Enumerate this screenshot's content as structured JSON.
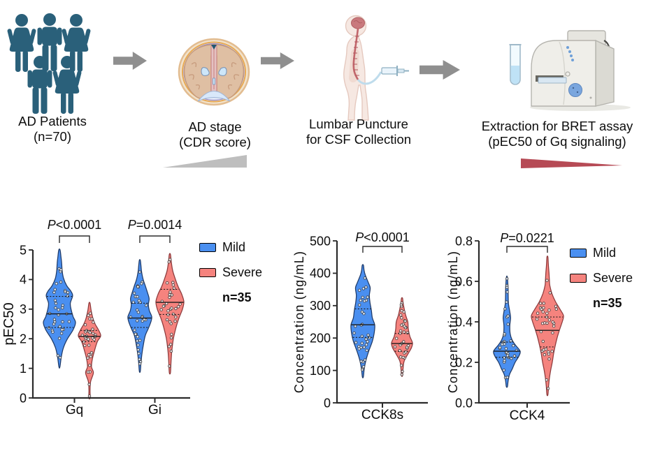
{
  "workflow": {
    "steps": [
      {
        "line1": "AD Patients",
        "line2": "(n=70)"
      },
      {
        "line1": "AD stage",
        "line2": "(CDR score)"
      },
      {
        "line1": "Lumbar Puncture",
        "line2": "for CSF Collection"
      },
      {
        "line1": "Extraction for BRET assay",
        "line2": "(pEC50 of Gq signaling)"
      }
    ]
  },
  "legend": {
    "mild": "Mild",
    "severe": "Severe",
    "note": "n=35"
  },
  "colors": {
    "mild": {
      "fill": "#4A8FF0",
      "stroke": "#1F3A67"
    },
    "severe": {
      "fill": "#F5837E",
      "stroke": "#8C3A3C"
    },
    "people": "#2A607A",
    "arrow": "#8F8F8F",
    "ramp_up": "#BEBEBE",
    "ramp_down": "#B64A55"
  },
  "chart_data": [
    {
      "type": "violin",
      "title": "pEC50 of Gq and Gi signaling by AD severity",
      "ylabel": "pEC50",
      "ylim": [
        0,
        5
      ],
      "yticks": [
        {
          "v": 0,
          "label": "0"
        },
        {
          "v": 1,
          "label": "1"
        },
        {
          "v": 2,
          "label": "2"
        },
        {
          "v": 3,
          "label": "3"
        },
        {
          "v": 4,
          "label": "4"
        },
        {
          "v": 5,
          "label": "5"
        }
      ],
      "n_per_series": 35,
      "legend": {
        "entries": [
          "Mild",
          "Severe"
        ],
        "note": "n=35",
        "position": "right"
      },
      "groups": [
        {
          "category": "Gq",
          "p_label": "P<0.0001",
          "violins": [
            {
              "series": "Mild",
              "min": 1.05,
              "max": 5.0,
              "q1": 2.38,
              "median": 2.84,
              "q3": 3.43,
              "profile": [
                [
                  1.05,
                  0.03
                ],
                [
                  1.4,
                  0.12
                ],
                [
                  1.7,
                  0.25
                ],
                [
                  2.0,
                  0.5
                ],
                [
                  2.3,
                  0.85
                ],
                [
                  2.55,
                  1.0
                ],
                [
                  2.75,
                  0.85
                ],
                [
                  3.0,
                  0.72
                ],
                [
                  3.2,
                  0.68
                ],
                [
                  3.45,
                  0.82
                ],
                [
                  3.6,
                  0.72
                ],
                [
                  3.8,
                  0.45
                ],
                [
                  4.05,
                  0.25
                ],
                [
                  4.3,
                  0.17
                ],
                [
                  4.55,
                  0.14
                ],
                [
                  4.75,
                  0.1
                ],
                [
                  5.0,
                  0.04
                ]
              ]
            },
            {
              "series": "Severe",
              "min": 0.0,
              "max": 3.2,
              "q1": 1.9,
              "median": 2.08,
              "q3": 2.28,
              "profile": [
                [
                  0.0,
                  0.06
                ],
                [
                  0.25,
                  0.05
                ],
                [
                  0.55,
                  0.1
                ],
                [
                  0.85,
                  0.35
                ],
                [
                  1.05,
                  0.18
                ],
                [
                  1.3,
                  0.25
                ],
                [
                  1.6,
                  0.45
                ],
                [
                  1.9,
                  0.7
                ],
                [
                  2.1,
                  1.0
                ],
                [
                  2.3,
                  0.8
                ],
                [
                  2.5,
                  0.5
                ],
                [
                  2.7,
                  0.3
                ],
                [
                  2.95,
                  0.15
                ],
                [
                  3.2,
                  0.05
                ]
              ]
            }
          ]
        },
        {
          "category": "Gi",
          "p_label": "P=0.0014",
          "violins": [
            {
              "series": "Mild",
              "min": 0.9,
              "max": 4.65,
              "q1": 2.38,
              "median": 2.7,
              "q3": 3.2,
              "profile": [
                [
                  0.9,
                  0.04
                ],
                [
                  1.2,
                  0.1
                ],
                [
                  1.5,
                  0.18
                ],
                [
                  1.8,
                  0.3
                ],
                [
                  2.1,
                  0.45
                ],
                [
                  2.35,
                  0.72
                ],
                [
                  2.6,
                  0.95
                ],
                [
                  2.75,
                  1.0
                ],
                [
                  2.95,
                  0.8
                ],
                [
                  3.15,
                  0.72
                ],
                [
                  3.35,
                  0.78
                ],
                [
                  3.55,
                  0.65
                ],
                [
                  3.8,
                  0.45
                ],
                [
                  4.0,
                  0.28
                ],
                [
                  4.25,
                  0.15
                ],
                [
                  4.45,
                  0.1
                ],
                [
                  4.65,
                  0.04
                ]
              ]
            },
            {
              "series": "Severe",
              "min": 0.85,
              "max": 4.85,
              "q1": 2.82,
              "median": 3.23,
              "q3": 3.67,
              "profile": [
                [
                  0.85,
                  0.04
                ],
                [
                  1.2,
                  0.08
                ],
                [
                  1.6,
                  0.14
                ],
                [
                  2.0,
                  0.25
                ],
                [
                  2.4,
                  0.45
                ],
                [
                  2.7,
                  0.65
                ],
                [
                  3.0,
                  0.9
                ],
                [
                  3.25,
                  1.0
                ],
                [
                  3.5,
                  0.85
                ],
                [
                  3.75,
                  0.6
                ],
                [
                  4.0,
                  0.4
                ],
                [
                  4.3,
                  0.2
                ],
                [
                  4.6,
                  0.1
                ],
                [
                  4.85,
                  0.04
                ]
              ]
            }
          ]
        }
      ]
    },
    {
      "type": "violin",
      "title": "CSF CCK8s concentration by AD severity",
      "ylabel": "Concentration (ng/mL)",
      "ylim": [
        0,
        500
      ],
      "yticks": [
        {
          "v": 0,
          "label": "0"
        },
        {
          "v": 100,
          "label": "100"
        },
        {
          "v": 200,
          "label": "200"
        },
        {
          "v": 300,
          "label": "300"
        },
        {
          "v": 400,
          "label": "400"
        },
        {
          "v": 500,
          "label": "500"
        }
      ],
      "n_per_series": 35,
      "groups": [
        {
          "category": "CCK8s",
          "p_label": "P<0.0001",
          "violins": [
            {
              "series": "Mild",
              "min": 80,
              "max": 425,
              "q1": 202,
              "median": 241,
              "q3": 290,
              "profile": [
                [
                  80,
                  0.04
                ],
                [
                  105,
                  0.12
                ],
                [
                  130,
                  0.25
                ],
                [
                  160,
                  0.5
                ],
                [
                  190,
                  0.8
                ],
                [
                  215,
                  0.95
                ],
                [
                  240,
                  1.0
                ],
                [
                  262,
                  0.8
                ],
                [
                  285,
                  0.72
                ],
                [
                  310,
                  0.6
                ],
                [
                  332,
                  0.55
                ],
                [
                  355,
                  0.62
                ],
                [
                  372,
                  0.45
                ],
                [
                  395,
                  0.2
                ],
                [
                  410,
                  0.1
                ],
                [
                  425,
                  0.05
                ]
              ]
            },
            {
              "series": "Severe",
              "min": 84,
              "max": 323,
              "q1": 159,
              "median": 183,
              "q3": 214,
              "profile": [
                [
                  84,
                  0.05
                ],
                [
                  105,
                  0.1
                ],
                [
                  128,
                  0.2
                ],
                [
                  150,
                  0.55
                ],
                [
                  170,
                  0.9
                ],
                [
                  185,
                  1.0
                ],
                [
                  205,
                  0.75
                ],
                [
                  228,
                  0.6
                ],
                [
                  250,
                  0.55
                ],
                [
                  270,
                  0.35
                ],
                [
                  295,
                  0.18
                ],
                [
                  310,
                  0.1
                ],
                [
                  323,
                  0.05
                ]
              ]
            }
          ]
        }
      ]
    },
    {
      "type": "violin",
      "title": "CSF CCK4 concentration by AD severity",
      "ylabel": "Concentration (ng/mL)",
      "ylim": [
        0,
        0.8
      ],
      "yticks": [
        {
          "v": 0,
          "label": "0.0"
        },
        {
          "v": 0.2,
          "label": "0.2"
        },
        {
          "v": 0.4,
          "label": "0.4"
        },
        {
          "v": 0.6,
          "label": "0.6"
        },
        {
          "v": 0.8,
          "label": "0.8"
        }
      ],
      "n_per_series": 35,
      "legend": {
        "entries": [
          "Mild",
          "Severe"
        ],
        "note": "n=35",
        "position": "right"
      },
      "groups": [
        {
          "category": "CCK4",
          "p_label": "P=0.0221",
          "violins": [
            {
              "series": "Mild",
              "min": 0.08,
              "max": 0.62,
              "q1": 0.225,
              "median": 0.255,
              "q3": 0.3,
              "profile": [
                [
                  0.08,
                  0.04
                ],
                [
                  0.11,
                  0.1
                ],
                [
                  0.14,
                  0.2
                ],
                [
                  0.17,
                  0.42
                ],
                [
                  0.2,
                  0.62
                ],
                [
                  0.23,
                  0.9
                ],
                [
                  0.255,
                  1.0
                ],
                [
                  0.285,
                  0.65
                ],
                [
                  0.31,
                  0.4
                ],
                [
                  0.34,
                  0.25
                ],
                [
                  0.38,
                  0.22
                ],
                [
                  0.42,
                  0.28
                ],
                [
                  0.45,
                  0.22
                ],
                [
                  0.49,
                  0.12
                ],
                [
                  0.53,
                  0.1
                ],
                [
                  0.57,
                  0.09
                ],
                [
                  0.62,
                  0.03
                ]
              ]
            },
            {
              "series": "Severe",
              "min": 0.04,
              "max": 0.72,
              "q1": 0.276,
              "median": 0.358,
              "q3": 0.424,
              "profile": [
                [
                  0.04,
                  0.03
                ],
                [
                  0.08,
                  0.07
                ],
                [
                  0.12,
                  0.12
                ],
                [
                  0.16,
                  0.2
                ],
                [
                  0.2,
                  0.3
                ],
                [
                  0.24,
                  0.38
                ],
                [
                  0.28,
                  0.48
                ],
                [
                  0.32,
                  0.6
                ],
                [
                  0.36,
                  0.75
                ],
                [
                  0.4,
                  0.92
                ],
                [
                  0.43,
                  1.0
                ],
                [
                  0.46,
                  0.8
                ],
                [
                  0.5,
                  0.5
                ],
                [
                  0.54,
                  0.28
                ],
                [
                  0.58,
                  0.15
                ],
                [
                  0.61,
                  0.12
                ],
                [
                  0.64,
                  0.1
                ],
                [
                  0.68,
                  0.06
                ],
                [
                  0.72,
                  0.03
                ]
              ]
            }
          ]
        }
      ]
    }
  ]
}
